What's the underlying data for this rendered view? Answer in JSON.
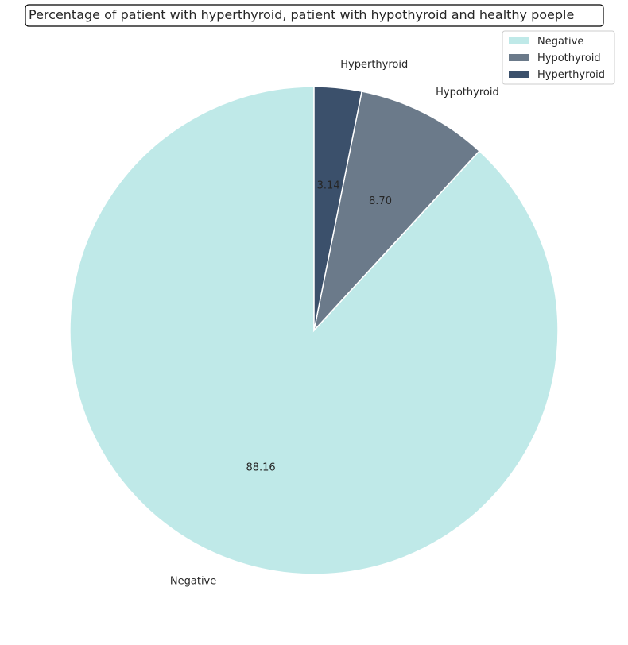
{
  "chart_data": {
    "type": "pie",
    "title": "Percentage of patient with hyperthyroid, patient with hypothyroid and healthy poeple",
    "categories": [
      "Negative",
      "Hypothyroid",
      "Hyperthyroid"
    ],
    "values": [
      88.16,
      8.7,
      3.14
    ],
    "value_labels": [
      "88.16",
      "8.70",
      "3.14"
    ],
    "colors": [
      "#bfe9e8",
      "#6b7a8a",
      "#3b506b"
    ],
    "start_angle_deg": 90,
    "direction": "clockwise-from-top-reverse",
    "legend": {
      "placement": "top-right",
      "entries": [
        "Negative",
        "Hypothyroid",
        "Hyperthyroid"
      ]
    }
  }
}
